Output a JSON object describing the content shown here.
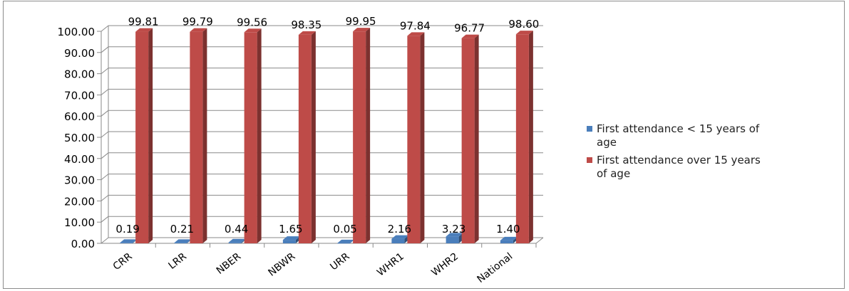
{
  "chart_data": {
    "type": "bar",
    "title": "",
    "xlabel": "",
    "ylabel": "",
    "categories": [
      "CRR",
      "LRR",
      "NBER",
      "NBWR",
      "URR",
      "WHR1",
      "WHR2",
      "National"
    ],
    "series": [
      {
        "name": "First attendance < 15 years of age",
        "legend_lines": [
          "First attendance < 15 years of",
          "age"
        ],
        "color": "#4a7ebb",
        "values": [
          0.19,
          0.21,
          0.44,
          1.65,
          0.05,
          2.16,
          3.23,
          1.4
        ],
        "labels": [
          "0.19",
          "0.21",
          "0.44",
          "1.65",
          "0.05",
          "2.16",
          "3.23",
          "1.40"
        ]
      },
      {
        "name": "First attendance over 15 years of age",
        "legend_lines": [
          "First attendance over 15 years",
          "of age"
        ],
        "color": "#be4b48",
        "values": [
          99.81,
          99.79,
          99.56,
          98.35,
          99.95,
          97.84,
          96.77,
          98.6
        ],
        "labels": [
          "99.81",
          "99.79",
          "99.56",
          "98.35",
          "99.95",
          "97.84",
          "96.77",
          "98.60"
        ]
      }
    ],
    "yticks": [
      "0.00",
      "10.00",
      "20.00",
      "30.00",
      "40.00",
      "50.00",
      "60.00",
      "70.00",
      "80.00",
      "90.00",
      "100.00"
    ],
    "ylim": [
      0,
      100
    ],
    "grid": true,
    "legend_position": "right"
  }
}
